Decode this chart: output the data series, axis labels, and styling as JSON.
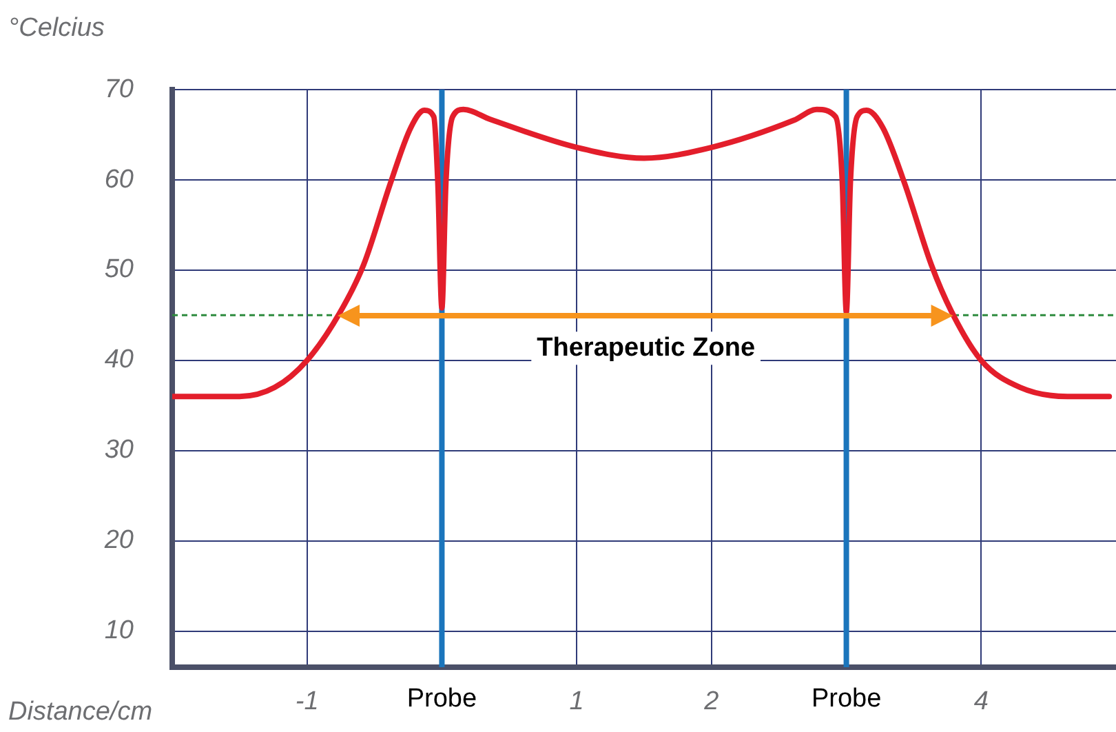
{
  "chart_data": {
    "type": "line",
    "xlabel": "Distance/cm",
    "ylabel": "°Celcius",
    "series": [
      {
        "color": "#e31e2b",
        "x": [
          -2,
          -1.5,
          -1.24,
          -1,
          -0.76,
          -0.58,
          -0.38,
          -0.23,
          -0.13,
          -0.06,
          -0.03,
          0,
          0.03,
          0.08,
          0.16,
          0.36,
          1,
          1.5,
          2,
          2.61,
          2.78,
          2.92,
          2.97,
          3,
          3.03,
          3.08,
          3.15,
          3.27,
          3.43,
          3.63,
          3.78,
          4,
          4.29,
          4.64,
          4.95
        ],
        "values": [
          36,
          36,
          37,
          40,
          45.2,
          50.6,
          59.7,
          65.8,
          67.7,
          67,
          59.7,
          45.8,
          59.7,
          67,
          67.8,
          66.7,
          63.6,
          62.4,
          63.6,
          66.6,
          67.8,
          67,
          59.7,
          45.4,
          59.7,
          67,
          67.7,
          65.8,
          59.7,
          50.6,
          45.4,
          40,
          37,
          36,
          36
        ]
      }
    ],
    "annotations": [
      "Therapeutic Zone"
    ],
    "xlim": [
      -2,
      5
    ],
    "xticks": [
      -1,
      1,
      2,
      4
    ],
    "ylim": [
      6,
      70
    ],
    "yticks": [
      10,
      20,
      30,
      40,
      50,
      60,
      70
    ],
    "grid": true,
    "legend": false,
    "line_style": "solid",
    "ref_lines": [
      {
        "axis": "x",
        "value": 0,
        "label": "Probe",
        "color": "#1b75bc",
        "line_style": "solid"
      },
      {
        "axis": "x",
        "value": 3,
        "label": "Probe",
        "color": "#1b75bc",
        "line_style": "solid"
      },
      {
        "axis": "y",
        "value": 45,
        "label": null,
        "color": "#2e8b3e",
        "line_style": "dashed"
      }
    ]
  }
}
